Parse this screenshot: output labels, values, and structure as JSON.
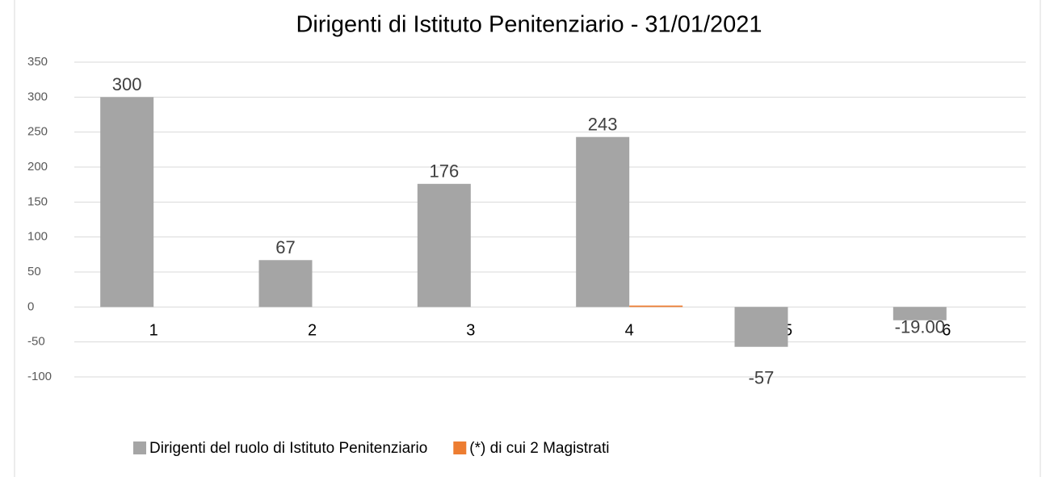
{
  "chart_data": {
    "type": "bar",
    "title": "Dirigenti di Istituto Penitenziario - 31/01/2021",
    "categories": [
      "1",
      "2",
      "3",
      "4",
      "5",
      "6"
    ],
    "series": [
      {
        "name": "Dirigenti del ruolo di Istituto Penitenziario",
        "color": "#a5a5a5",
        "values": [
          300,
          67,
          176,
          243,
          -57,
          -19
        ],
        "value_labels": [
          "300",
          "67",
          "176",
          "243",
          "-57",
          "-19.00"
        ]
      },
      {
        "name": "(*) di cui 2 Magistrati",
        "color": "#ed7d31",
        "values": [
          null,
          null,
          null,
          2,
          null,
          null
        ]
      }
    ],
    "ylim": [
      -100,
      350
    ],
    "yticks": [
      -100,
      -50,
      0,
      50,
      100,
      150,
      200,
      250,
      300,
      350
    ],
    "grid": true,
    "legend": "bottom"
  }
}
